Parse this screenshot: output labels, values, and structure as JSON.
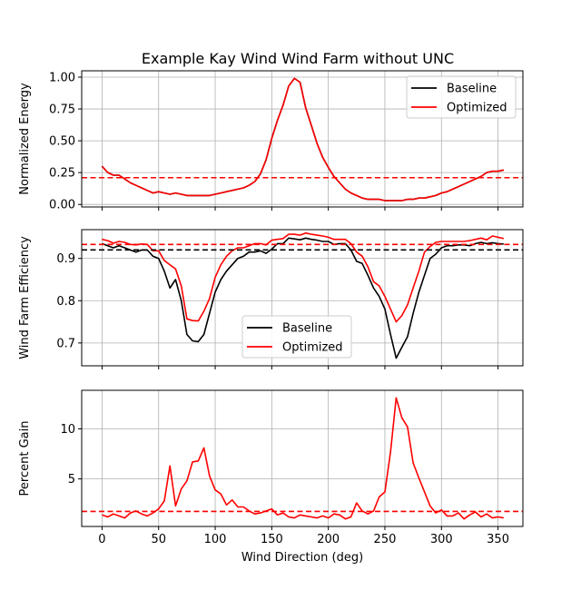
{
  "figure": {
    "title": "Example Kay Wind Wind Farm without UNC"
  },
  "chart_data": [
    {
      "type": "line",
      "title": "Example Kay Wind Wind Farm without UNC",
      "xlabel": "",
      "ylabel": "Normalized Energy",
      "xlim": [
        -18,
        372
      ],
      "ylim": [
        -0.02,
        1.05
      ],
      "xticks": [
        0,
        50,
        100,
        150,
        200,
        250,
        300,
        350
      ],
      "yticks": [
        0.0,
        0.25,
        0.5,
        0.75,
        1.0
      ],
      "ytick_labels": [
        "0.00",
        "0.25",
        "0.50",
        "0.75",
        "1.00"
      ],
      "grid": true,
      "legend": "upper right",
      "x": [
        0,
        5,
        10,
        15,
        20,
        25,
        30,
        35,
        40,
        45,
        50,
        55,
        60,
        65,
        70,
        75,
        80,
        85,
        90,
        95,
        100,
        105,
        110,
        115,
        120,
        125,
        130,
        135,
        140,
        145,
        150,
        155,
        160,
        165,
        170,
        175,
        180,
        185,
        190,
        195,
        200,
        205,
        210,
        215,
        220,
        225,
        230,
        235,
        240,
        245,
        250,
        255,
        260,
        265,
        270,
        275,
        280,
        285,
        290,
        295,
        300,
        305,
        310,
        315,
        320,
        325,
        330,
        335,
        340,
        345,
        350,
        355
      ],
      "series": [
        {
          "name": "Baseline",
          "color": "#000000",
          "values": [
            0.3,
            0.25,
            0.23,
            0.23,
            0.2,
            0.17,
            0.15,
            0.13,
            0.11,
            0.09,
            0.1,
            0.09,
            0.08,
            0.09,
            0.08,
            0.07,
            0.07,
            0.07,
            0.07,
            0.07,
            0.08,
            0.09,
            0.1,
            0.11,
            0.12,
            0.13,
            0.15,
            0.18,
            0.24,
            0.35,
            0.52,
            0.66,
            0.78,
            0.93,
            0.99,
            0.96,
            0.76,
            0.62,
            0.48,
            0.37,
            0.29,
            0.22,
            0.17,
            0.12,
            0.09,
            0.07,
            0.05,
            0.04,
            0.04,
            0.04,
            0.03,
            0.03,
            0.03,
            0.03,
            0.04,
            0.04,
            0.05,
            0.05,
            0.06,
            0.07,
            0.09,
            0.1,
            0.12,
            0.14,
            0.16,
            0.18,
            0.2,
            0.22,
            0.25,
            0.26,
            0.26,
            0.27
          ]
        },
        {
          "name": "Optimized",
          "color": "#ff0000",
          "values": [
            0.3,
            0.25,
            0.23,
            0.23,
            0.2,
            0.17,
            0.15,
            0.13,
            0.11,
            0.09,
            0.1,
            0.09,
            0.08,
            0.09,
            0.08,
            0.07,
            0.07,
            0.07,
            0.07,
            0.07,
            0.08,
            0.09,
            0.1,
            0.11,
            0.12,
            0.13,
            0.15,
            0.18,
            0.24,
            0.35,
            0.52,
            0.66,
            0.78,
            0.93,
            0.99,
            0.96,
            0.76,
            0.62,
            0.48,
            0.37,
            0.29,
            0.22,
            0.17,
            0.12,
            0.09,
            0.07,
            0.05,
            0.04,
            0.04,
            0.04,
            0.03,
            0.03,
            0.03,
            0.03,
            0.04,
            0.04,
            0.05,
            0.05,
            0.06,
            0.07,
            0.09,
            0.1,
            0.12,
            0.14,
            0.16,
            0.18,
            0.2,
            0.22,
            0.25,
            0.26,
            0.26,
            0.27
          ]
        }
      ],
      "hlines": [
        {
          "y": 0.21,
          "color": "#ff0000",
          "style": "dashed"
        }
      ]
    },
    {
      "type": "line",
      "title": "",
      "xlabel": "",
      "ylabel": "Wind Farm Efficiency",
      "xlim": [
        -18,
        372
      ],
      "ylim": [
        0.646,
        0.968
      ],
      "xticks": [
        0,
        50,
        100,
        150,
        200,
        250,
        300,
        350
      ],
      "yticks": [
        0.7,
        0.8,
        0.9
      ],
      "ytick_labels": [
        "0.7",
        "0.8",
        "0.9"
      ],
      "grid": true,
      "legend": "lower center",
      "x": [
        0,
        5,
        10,
        15,
        20,
        25,
        30,
        35,
        40,
        45,
        50,
        55,
        60,
        65,
        70,
        75,
        80,
        85,
        90,
        95,
        100,
        105,
        110,
        115,
        120,
        125,
        130,
        135,
        140,
        145,
        150,
        155,
        160,
        165,
        170,
        175,
        180,
        185,
        190,
        195,
        200,
        205,
        210,
        215,
        220,
        225,
        230,
        235,
        240,
        245,
        250,
        255,
        260,
        265,
        270,
        275,
        280,
        285,
        290,
        295,
        300,
        305,
        310,
        315,
        320,
        325,
        330,
        335,
        340,
        345,
        350,
        355
      ],
      "series": [
        {
          "name": "Baseline",
          "color": "#000000",
          "values": [
            0.935,
            0.93,
            0.925,
            0.93,
            0.925,
            0.92,
            0.915,
            0.92,
            0.92,
            0.905,
            0.9,
            0.87,
            0.83,
            0.85,
            0.8,
            0.72,
            0.705,
            0.703,
            0.72,
            0.77,
            0.82,
            0.85,
            0.87,
            0.885,
            0.9,
            0.905,
            0.915,
            0.915,
            0.918,
            0.912,
            0.922,
            0.935,
            0.935,
            0.948,
            0.946,
            0.944,
            0.948,
            0.945,
            0.943,
            0.94,
            0.94,
            0.933,
            0.935,
            0.935,
            0.92,
            0.893,
            0.888,
            0.86,
            0.83,
            0.81,
            0.78,
            0.72,
            0.664,
            0.69,
            0.715,
            0.77,
            0.82,
            0.86,
            0.9,
            0.91,
            0.925,
            0.93,
            0.93,
            0.932,
            0.932,
            0.93,
            0.935,
            0.938,
            0.935,
            0.937,
            0.935,
            0.934
          ]
        },
        {
          "name": "Optimized",
          "color": "#ff0000",
          "values": [
            0.945,
            0.942,
            0.936,
            0.94,
            0.938,
            0.933,
            0.932,
            0.934,
            0.933,
            0.918,
            0.918,
            0.895,
            0.885,
            0.875,
            0.835,
            0.757,
            0.753,
            0.752,
            0.775,
            0.805,
            0.855,
            0.885,
            0.905,
            0.918,
            0.925,
            0.925,
            0.93,
            0.935,
            0.935,
            0.932,
            0.943,
            0.945,
            0.947,
            0.957,
            0.957,
            0.955,
            0.96,
            0.957,
            0.955,
            0.953,
            0.95,
            0.945,
            0.945,
            0.945,
            0.935,
            0.915,
            0.905,
            0.88,
            0.845,
            0.835,
            0.81,
            0.78,
            0.75,
            0.765,
            0.79,
            0.83,
            0.87,
            0.915,
            0.928,
            0.938,
            0.94,
            0.94,
            0.94,
            0.94,
            0.94,
            0.942,
            0.945,
            0.948,
            0.944,
            0.953,
            0.95,
            0.947
          ]
        }
      ],
      "hlines": [
        {
          "y": 0.933,
          "color": "#ff0000",
          "style": "dashed"
        },
        {
          "y": 0.92,
          "color": "#000000",
          "style": "dashed"
        }
      ]
    },
    {
      "type": "line",
      "title": "",
      "xlabel": "Wind Direction (deg)",
      "ylabel": "Percent Gain",
      "xlim": [
        -18,
        372
      ],
      "ylim": [
        0.25,
        13.85
      ],
      "xticks": [
        0,
        50,
        100,
        150,
        200,
        250,
        300,
        350
      ],
      "xtick_labels": [
        "0",
        "50",
        "100",
        "150",
        "200",
        "250",
        "300",
        "350"
      ],
      "yticks": [
        5,
        10
      ],
      "ytick_labels": [
        "5",
        "10"
      ],
      "grid": true,
      "legend": "none",
      "x": [
        0,
        5,
        10,
        15,
        20,
        25,
        30,
        35,
        40,
        45,
        50,
        55,
        60,
        65,
        70,
        75,
        80,
        85,
        90,
        95,
        100,
        105,
        110,
        115,
        120,
        125,
        130,
        135,
        140,
        145,
        150,
        155,
        160,
        165,
        170,
        175,
        180,
        185,
        190,
        195,
        200,
        205,
        210,
        215,
        220,
        225,
        230,
        235,
        240,
        245,
        250,
        255,
        260,
        265,
        270,
        275,
        280,
        285,
        290,
        295,
        300,
        305,
        310,
        315,
        320,
        325,
        330,
        335,
        340,
        345,
        350,
        355
      ],
      "series": [
        {
          "name": "",
          "color": "#ff0000",
          "values": [
            1.4,
            1.2,
            1.5,
            1.3,
            1.1,
            1.6,
            1.8,
            1.5,
            1.3,
            1.6,
            2.0,
            2.8,
            6.3,
            2.3,
            4.0,
            4.8,
            6.7,
            6.8,
            8.1,
            5.3,
            3.9,
            3.5,
            2.4,
            2.9,
            2.2,
            2.2,
            1.8,
            1.5,
            1.6,
            1.8,
            2.0,
            1.4,
            1.6,
            1.2,
            1.1,
            1.4,
            1.3,
            1.2,
            1.1,
            1.3,
            1.1,
            1.5,
            1.4,
            1.0,
            1.2,
            2.6,
            1.8,
            1.5,
            1.8,
            3.2,
            3.7,
            7.7,
            13.1,
            11.1,
            10.2,
            6.6,
            5.1,
            3.7,
            2.3,
            1.6,
            1.9,
            1.3,
            1.3,
            1.6,
            1.0,
            1.4,
            1.7,
            1.2,
            1.5,
            1.1,
            1.2,
            1.1
          ]
        }
      ],
      "hlines": [
        {
          "y": 1.75,
          "color": "#ff0000",
          "style": "dashed"
        }
      ]
    }
  ]
}
